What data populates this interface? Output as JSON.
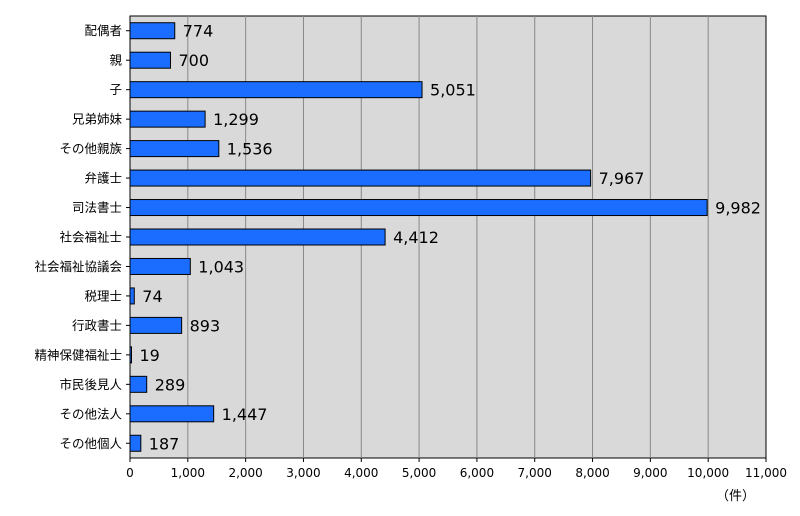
{
  "chart_data": {
    "type": "bar",
    "orientation": "horizontal",
    "categories": [
      "配偶者",
      "親",
      "子",
      "兄弟姉妹",
      "その他親族",
      "弁護士",
      "司法書士",
      "社会福祉士",
      "社会福祉協議会",
      "税理士",
      "行政書士",
      "精神保健福祉士",
      "市民後見人",
      "その他法人",
      "その他個人"
    ],
    "values": [
      774,
      700,
      5051,
      1299,
      1536,
      7967,
      9982,
      4412,
      1043,
      74,
      893,
      19,
      289,
      1447,
      187
    ],
    "value_labels": [
      "774",
      "700",
      "5,051",
      "1,299",
      "1,536",
      "7,967",
      "9,982",
      "4,412",
      "1,043",
      "74",
      "893",
      "19",
      "289",
      "1,447",
      "187"
    ],
    "xlim": [
      0,
      11000
    ],
    "x_ticks": [
      0,
      1000,
      2000,
      3000,
      4000,
      5000,
      6000,
      7000,
      8000,
      9000,
      10000,
      11000
    ],
    "x_tick_labels": [
      "0",
      "1,000",
      "2,000",
      "3,000",
      "4,000",
      "5,000",
      "6,000",
      "7,000",
      "8,000",
      "9,000",
      "10,000",
      "11,000"
    ],
    "x_unit": "（件）",
    "grid": true,
    "colors": {
      "bar": "#1a6dff",
      "plot_bg": "#d9d9d9",
      "grid": "#888888"
    }
  }
}
